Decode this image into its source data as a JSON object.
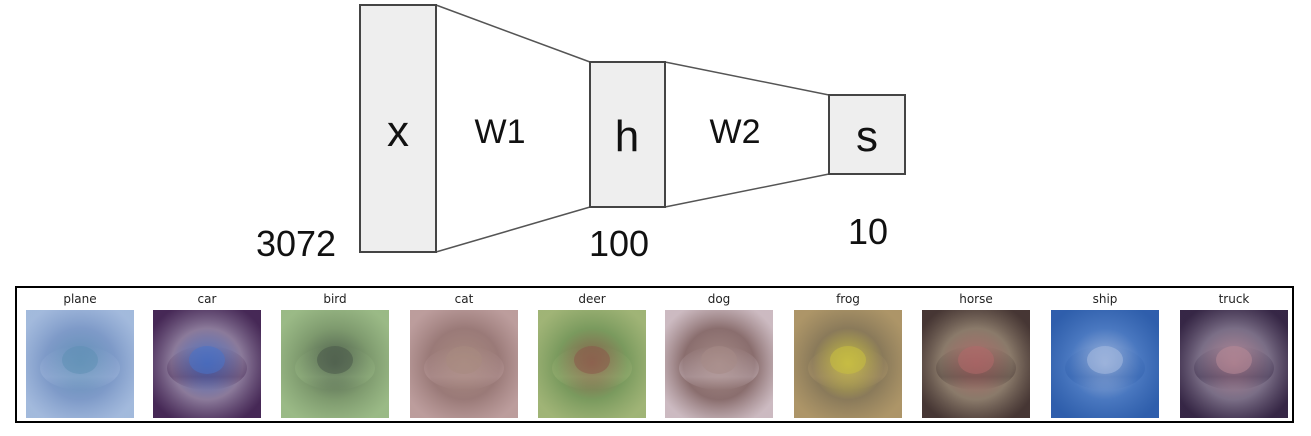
{
  "network": {
    "input": {
      "letter": "x",
      "size": "3072"
    },
    "hidden": {
      "letter": "h",
      "size": "100"
    },
    "output": {
      "letter": "s",
      "size": "10"
    },
    "weights": [
      "W1",
      "W2"
    ]
  },
  "templates": [
    {
      "label": "plane",
      "bg": "#7e9ac8",
      "center": "#5f8fb5",
      "accent": "#a9bfe0"
    },
    {
      "label": "car",
      "bg": "#8b7a9a",
      "center": "#4a73c7",
      "accent": "#3a1a4a"
    },
    {
      "label": "bird",
      "bg": "#7e9a6e",
      "center": "#4a5a4a",
      "accent": "#9fbf8a"
    },
    {
      "label": "cat",
      "bg": "#9a7a78",
      "center": "#a88a80",
      "accent": "#c2a3a3"
    },
    {
      "label": "deer",
      "bg": "#7a9a5e",
      "center": "#8a5a4a",
      "accent": "#a6b87a"
    },
    {
      "label": "dog",
      "bg": "#8a6e6e",
      "center": "#a58a86",
      "accent": "#d8c8d0"
    },
    {
      "label": "frog",
      "bg": "#8a7a5a",
      "center": "#c8c040",
      "accent": "#b39a6a"
    },
    {
      "label": "horse",
      "bg": "#8a7a6a",
      "center": "#b06a6a",
      "accent": "#3a2a2a"
    },
    {
      "label": "ship",
      "bg": "#4a78c0",
      "center": "#a8bce0",
      "accent": "#2a5aa8"
    },
    {
      "label": "truck",
      "bg": "#7a6e86",
      "center": "#b88a98",
      "accent": "#2a1a3a"
    }
  ]
}
